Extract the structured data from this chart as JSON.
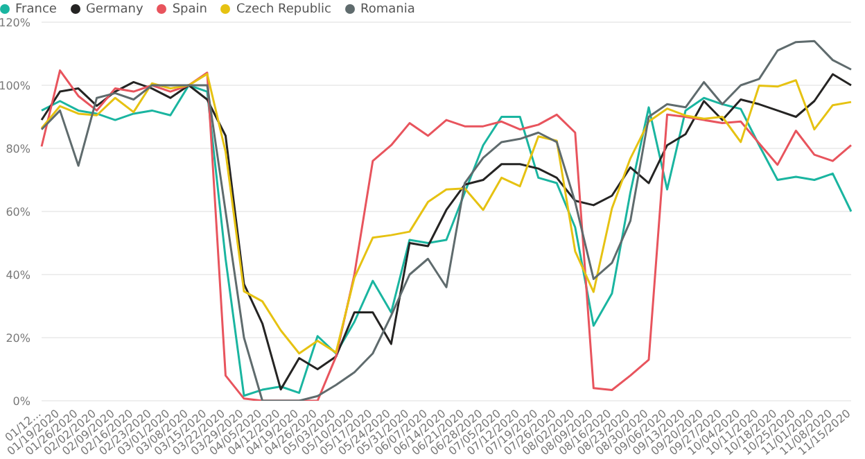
{
  "chart_data": {
    "type": "line",
    "categories": [
      "01/12...",
      "01/19/2020",
      "01/26/2020",
      "02/02/2020",
      "02/09/2020",
      "02/16/2020",
      "02/23/2020",
      "03/01/2020",
      "03/08/2020",
      "03/15/2020",
      "03/22/2020",
      "03/29/2020",
      "04/05/2020",
      "04/12/2020",
      "04/19/2020",
      "04/26/2020",
      "05/03/2020",
      "05/10/2020",
      "05/17/2020",
      "05/24/2020",
      "05/31/2020",
      "06/07/2020",
      "06/14/2020",
      "06/21/2020",
      "06/28/2020",
      "07/05/2020",
      "07/12/2020",
      "07/19/2020",
      "07/26/2020",
      "08/02/2020",
      "08/09/2020",
      "08/16/2020",
      "08/23/2020",
      "08/30/2020",
      "09/06/2020",
      "09/13/2020",
      "09/20/2020",
      "09/27/2020",
      "10/04/2020",
      "10/11/2020",
      "10/18/2020",
      "10/25/2020",
      "11/01/2020",
      "11/08/2020",
      "11/15/2020"
    ],
    "series": [
      {
        "name": "France",
        "color": "#1ab5a0",
        "values": [
          92,
          95,
          92,
          91,
          89,
          91,
          92,
          90.5,
          100,
          98,
          45,
          1.6,
          3.5,
          4.5,
          2.5,
          20.5,
          15,
          25,
          38,
          28,
          51,
          50,
          51,
          66,
          81,
          90,
          90,
          70.7,
          69,
          55,
          23.8,
          34,
          66,
          93,
          67,
          92,
          96,
          94,
          92.5,
          81,
          70,
          71,
          70,
          72,
          60
        ]
      },
      {
        "name": "Germany",
        "color": "#252423",
        "values": [
          89,
          98,
          99,
          93.5,
          98,
          101,
          99,
          96,
          100,
          95.5,
          84,
          37,
          24.5,
          3.6,
          13.5,
          10,
          14,
          28,
          28,
          18,
          50,
          49,
          60.5,
          68.5,
          70,
          75,
          75,
          73.6,
          70.7,
          63.4,
          62,
          65,
          74,
          69,
          81,
          84.5,
          95,
          89,
          95.5,
          94,
          92,
          90,
          95,
          103.5,
          100
        ]
      },
      {
        "name": "Spain",
        "color": "#e8545d",
        "values": [
          80.6,
          104.7,
          96.6,
          92,
          99,
          98,
          100,
          98,
          100,
          104,
          8,
          0.7,
          0,
          0,
          0,
          0,
          14,
          40,
          76,
          81,
          88,
          84,
          89,
          87,
          87,
          88.5,
          86,
          87.5,
          90.7,
          85,
          4,
          3.4,
          8,
          13,
          90.7,
          90,
          89,
          88,
          88.5,
          81.6,
          74.8,
          85.6,
          78,
          76,
          81
        ]
      },
      {
        "name": "Czech Republic",
        "color": "#e6c212",
        "values": [
          86.4,
          93.4,
          91,
          90.5,
          96,
          91.5,
          100.6,
          99,
          100,
          103.6,
          79,
          34.7,
          31.5,
          22.3,
          15,
          19,
          15.3,
          39,
          51.7,
          52.5,
          53.6,
          63,
          67,
          67.3,
          60.5,
          70.7,
          68,
          83.8,
          82.4,
          47.4,
          34.5,
          61,
          76.8,
          88.5,
          92.6,
          90.4,
          89.4,
          90,
          82,
          99.9,
          99.6,
          101.6,
          86,
          93.7,
          94.7
        ]
      },
      {
        "name": "Romania",
        "color": "#5f6b6d",
        "values": [
          86,
          92,
          74.5,
          96,
          97.5,
          95.5,
          100,
          100,
          100,
          100,
          60,
          20,
          0,
          0,
          0,
          1.5,
          5,
          9,
          15,
          27,
          40,
          45,
          36,
          69,
          77,
          82,
          83,
          85,
          82,
          63,
          38.6,
          43.7,
          57,
          90,
          94,
          93,
          101,
          94,
          100,
          102,
          111,
          113.7,
          114,
          108,
          105
        ]
      }
    ],
    "ylim": [
      0,
      120
    ],
    "yticks": [
      {
        "value": 0,
        "label": "0%"
      },
      {
        "value": 20,
        "label": "20%"
      },
      {
        "value": 40,
        "label": "40%"
      },
      {
        "value": 60,
        "label": "60%"
      },
      {
        "value": 80,
        "label": "80%"
      },
      {
        "value": 100,
        "label": "100%"
      },
      {
        "value": 120,
        "label": "120%"
      }
    ],
    "grid": "y",
    "legend": "top left"
  }
}
